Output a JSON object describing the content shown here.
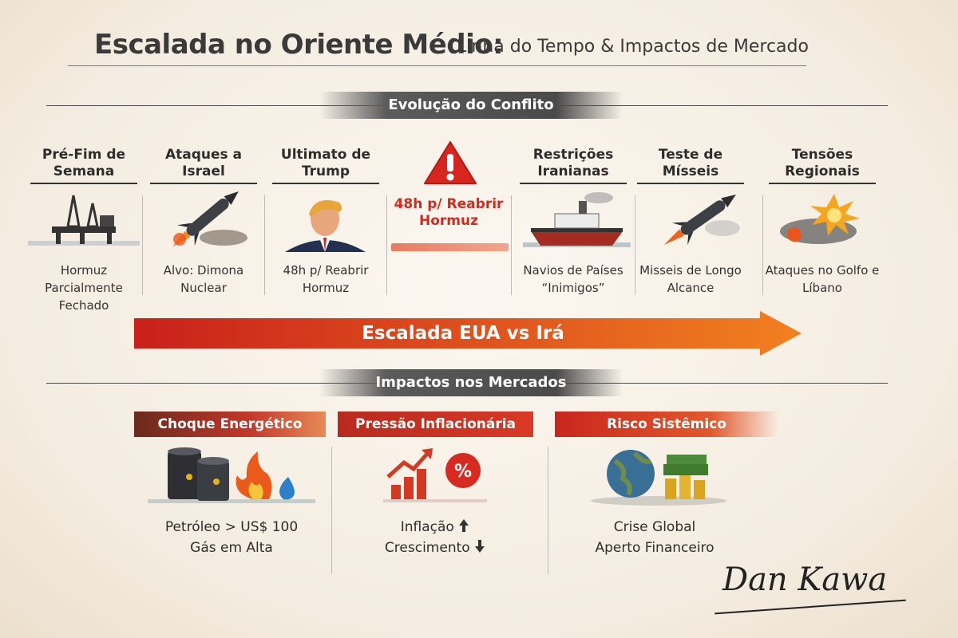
{
  "header": {
    "title": "Escalada no Oriente Médio:",
    "subtitle": "Linha do Tempo & Impactos de Mercado"
  },
  "timeline": {
    "section_title": "Evolução do Conflito",
    "events": [
      {
        "title": "Pré-Fim de Semana",
        "caption": "Hormuz Parcialmente Fechado"
      },
      {
        "title": "Ataques a Israel",
        "caption": "Alvo: Dimona Nuclear"
      },
      {
        "title": "Ultimato de Trump",
        "caption": "48h p/ Reabrir Hormuz"
      },
      {
        "title": "Restrições Iranianas",
        "caption": "Navios de Países “Inimigos”"
      },
      {
        "title": "Teste de Mísseis",
        "caption": "Misseis de Longo Alcance"
      },
      {
        "title": "Tensões Regionais",
        "caption": "Ataques no Golfo e Líbano"
      }
    ],
    "alert": {
      "line1": "48h p/ Reabrir",
      "line2": "Hormuz"
    },
    "arrow_label": "Escalada EUA vs Irá"
  },
  "markets": {
    "section_title": "Impactos nos Mercados",
    "items": [
      {
        "title": "Choque Energético",
        "lines": [
          "Petróleo > US$ 100",
          "Gás em Alta"
        ]
      },
      {
        "title": "Pressão Inflacionária",
        "lines": [
          "Inflação",
          "Crescimento"
        ]
      },
      {
        "title": "Risco Sistêmico",
        "lines": [
          "Crise Global",
          "Aperto Financeiro"
        ]
      }
    ]
  },
  "signature": "Dan Kawa"
}
